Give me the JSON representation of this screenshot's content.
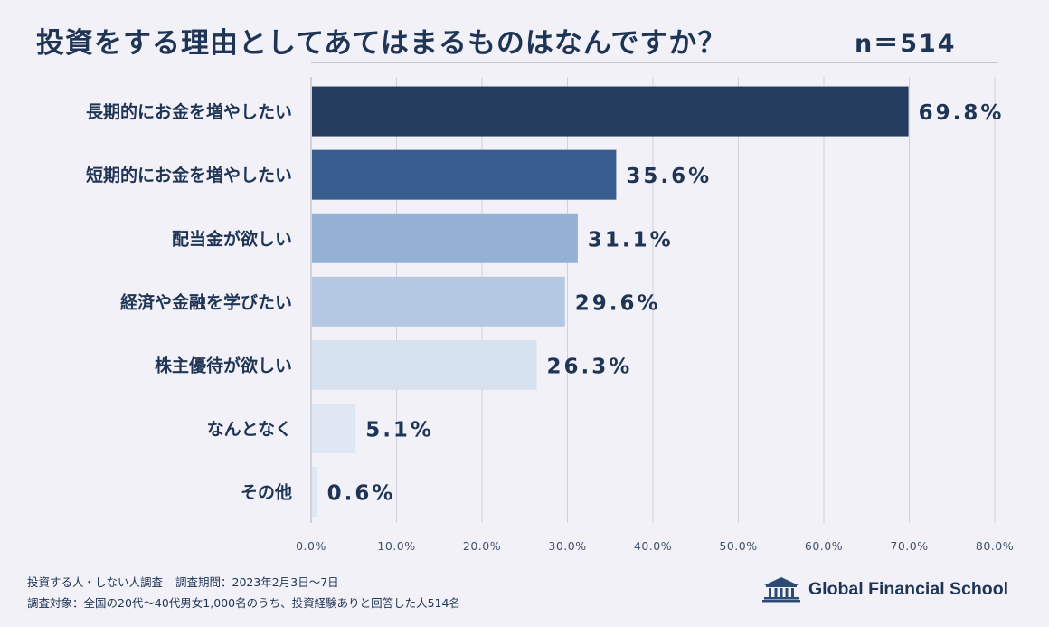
{
  "header": {
    "title": "投資をする理由としてあてはまるものはなんですか？",
    "sample_size": "n＝514"
  },
  "chart_data": {
    "type": "bar",
    "orientation": "horizontal",
    "title": "投資をする理由としてあてはまるものはなんですか？",
    "categories": [
      "長期的にお金を増やしたい",
      "短期的にお金を増やしたい",
      "配当金が欲しい",
      "経済や金融を学びたい",
      "株主優待が欲しい",
      "なんとなく",
      "その他"
    ],
    "values": [
      69.8,
      35.6,
      31.1,
      29.6,
      26.3,
      5.1,
      0.6
    ],
    "value_labels": [
      "69.8%",
      "35.6%",
      "31.1%",
      "29.6%",
      "26.3%",
      "5.1%",
      "0.6%"
    ],
    "bar_colors": [
      "#243c5e",
      "#375d8e",
      "#94b1d4",
      "#b4c8e1",
      "#d7e2f0",
      "#dfe7f2",
      "#dfe7f2"
    ],
    "xlim": [
      0,
      80
    ],
    "xticks": [
      0,
      10,
      20,
      30,
      40,
      50,
      60,
      70,
      80
    ],
    "xtick_labels": [
      "0.0%",
      "10.0%",
      "20.0%",
      "30.0%",
      "40.0%",
      "50.0%",
      "60.0%",
      "70.0%",
      "80.0%"
    ],
    "xlabel": "",
    "ylabel": "",
    "grid": true,
    "legend": "none"
  },
  "footer": {
    "survey_name": "投資する人・しない人調査",
    "survey_period": "調査期間：2023年2月3日〜7日",
    "survey_target": "調査対象：全国の20代〜40代男女1,000名のうち、投資経験ありと回答した人514名",
    "brand": "Global Financial School"
  },
  "icons": {
    "brand_logo": "school-building-icon"
  }
}
